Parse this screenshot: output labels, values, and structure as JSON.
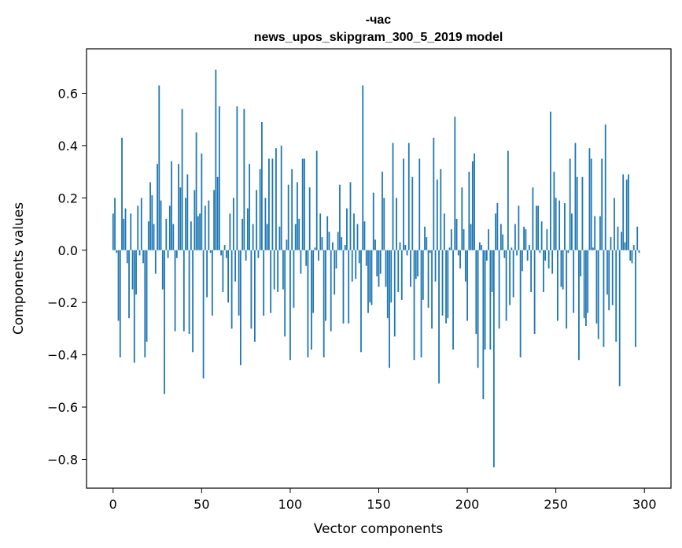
{
  "chart_data": {
    "type": "bar",
    "title_line1": "-час",
    "title_line2": "news_upos_skipgram_300_5_2019 model",
    "xlabel": "Vector components",
    "ylabel": "Components values",
    "xlim": [
      -15,
      315
    ],
    "ylim": [
      -0.91,
      0.77
    ],
    "xticks": [
      0,
      50,
      100,
      150,
      200,
      250,
      300
    ],
    "yticks": [
      -0.8,
      -0.6,
      -0.4,
      -0.2,
      0.0,
      0.2,
      0.4,
      0.6
    ],
    "ytick_labels": [
      "−0.8",
      "−0.6",
      "−0.4",
      "−0.2",
      "0.0",
      "0.2",
      "0.4",
      "0.6"
    ],
    "bar_color": "#1f77b4",
    "values": [
      0.14,
      0.2,
      -0.01,
      -0.27,
      -0.41,
      0.43,
      0.12,
      0.16,
      -0.05,
      -0.26,
      0.14,
      -0.15,
      -0.43,
      -0.17,
      0.17,
      -0.02,
      0.2,
      -0.05,
      -0.41,
      -0.35,
      0.11,
      0.26,
      0.21,
      0.1,
      -0.09,
      0.33,
      0.63,
      0.19,
      -0.15,
      -0.55,
      0.12,
      -0.03,
      0.17,
      0.34,
      0.1,
      -0.31,
      -0.03,
      0.33,
      0.24,
      0.54,
      -0.31,
      0.2,
      0.29,
      -0.32,
      0.11,
      -0.39,
      0.23,
      0.45,
      0.13,
      0.14,
      0.37,
      -0.49,
      0.17,
      -0.18,
      0.19,
      -0.01,
      -0.25,
      0.23,
      0.69,
      0.28,
      0.55,
      -0.02,
      -0.16,
      0.02,
      -0.03,
      -0.2,
      0.14,
      -0.3,
      0.2,
      -0.12,
      0.55,
      -0.25,
      -0.44,
      0.12,
      0.54,
      -0.04,
      0.16,
      0.33,
      -0.3,
      0.1,
      -0.35,
      0.23,
      -0.03,
      0.31,
      0.49,
      -0.25,
      0.2,
      0.1,
      0.35,
      -0.24,
      0.35,
      -0.15,
      0.39,
      -0.16,
      0.09,
      0.4,
      -0.15,
      -0.33,
      0.04,
      0.25,
      -0.42,
      0.31,
      -0.22,
      0.1,
      0.26,
      0.12,
      -0.09,
      0.35,
      0.35,
      -0.06,
      -0.41,
      0.24,
      -0.38,
      -0.24,
      0.01,
      0.38,
      -0.04,
      0.14,
      0.05,
      -0.41,
      -0.27,
      0.13,
      0.07,
      -0.31,
      0.03,
      -0.17,
      -0.07,
      0.07,
      0.25,
      0.05,
      -0.28,
      0.02,
      0.16,
      -0.28,
      0.26,
      -0.12,
      0.14,
      -0.11,
      0.1,
      -0.05,
      -0.39,
      0.63,
      0.11,
      -0.06,
      -0.24,
      -0.2,
      -0.21,
      0.22,
      0.04,
      -0.1,
      -0.14,
      -0.09,
      0.3,
      0.2,
      -0.14,
      -0.26,
      -0.45,
      -0.2,
      0.41,
      -0.33,
      0.2,
      -0.16,
      0.03,
      -0.19,
      0.35,
      0.02,
      -0.02,
      0.41,
      -0.14,
      0.28,
      -0.42,
      -0.11,
      -0.1,
      0.35,
      -0.41,
      -0.19,
      0.09,
      0.05,
      -0.22,
      -0.01,
      -0.3,
      0.43,
      -0.12,
      0.27,
      -0.51,
      0.31,
      -0.25,
      0.14,
      -0.28,
      -0.26,
      0.01,
      0.08,
      -0.38,
      0.51,
      0.12,
      -0.02,
      -0.07,
      0.24,
      0.08,
      -0.12,
      -0.27,
      0.3,
      0.1,
      0.34,
      0.37,
      -0.32,
      -0.45,
      0.03,
      0.02,
      -0.57,
      -0.38,
      -0.04,
      0.08,
      -0.38,
      -0.16,
      -0.83,
      0.14,
      0.18,
      -0.3,
      0.1,
      0.06,
      -0.03,
      -0.27,
      0.38,
      -0.21,
      0.01,
      -0.18,
      0.1,
      -0.02,
      0.17,
      -0.41,
      -0.08,
      0.09,
      0.08,
      -0.04,
      0.02,
      -0.16,
      0.24,
      -0.32,
      0.17,
      0.17,
      -0.01,
      0.11,
      -0.16,
      -0.04,
      0.08,
      -0.07,
      0.53,
      -0.09,
      0.3,
      0.2,
      -0.27,
      0.19,
      -0.14,
      -0.15,
      0.18,
      -0.3,
      -0.01,
      0.35,
      0.14,
      -0.24,
      0.41,
      0.28,
      -0.42,
      -0.1,
      0.28,
      -0.26,
      -0.29,
      -0.24,
      0.39,
      0.35,
      0.01,
      0.13,
      -0.28,
      -0.34,
      0.13,
      0.35,
      -0.37,
      0.48,
      -0.17,
      -0.23,
      0.05,
      -0.21,
      0.2,
      -0.35,
      0.09,
      -0.52,
      0.07,
      0.29,
      0.03,
      0.27,
      0.29,
      -0.04,
      -0.05,
      0.02,
      -0.37,
      0.09,
      -0.01
    ]
  }
}
